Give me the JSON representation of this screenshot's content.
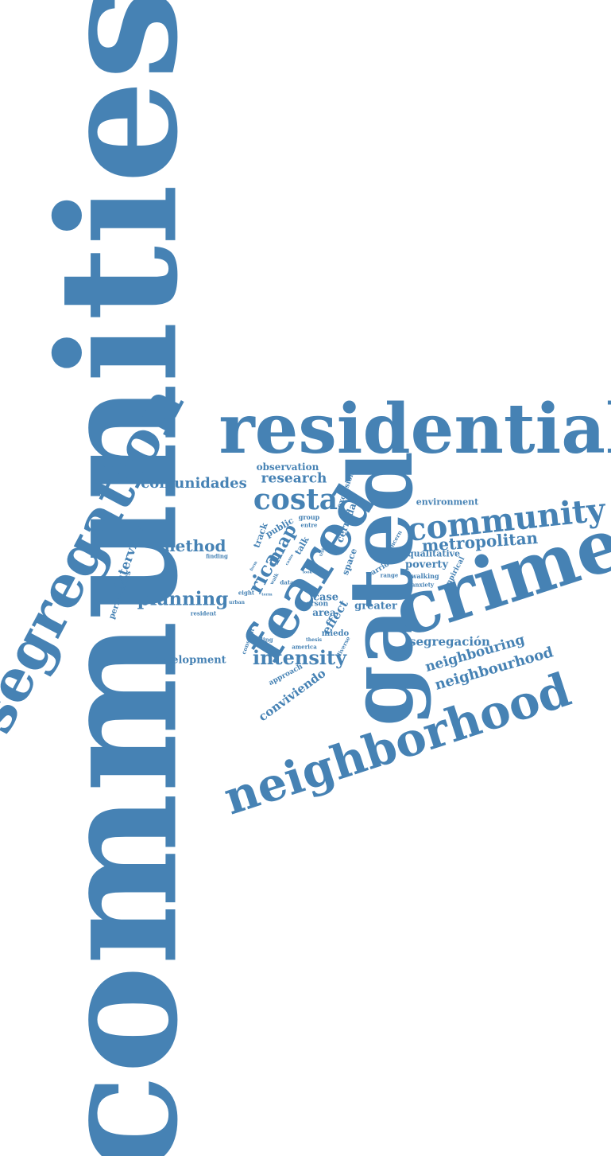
{
  "color": "#4682b4",
  "words": [
    {
      "text": "communities"
    },
    {
      "text": "residential"
    },
    {
      "text": "segregation"
    },
    {
      "text": "gated"
    },
    {
      "text": "crime"
    },
    {
      "text": "feared"
    },
    {
      "text": "neighborhood"
    },
    {
      "text": "community"
    },
    {
      "text": "costa"
    },
    {
      "text": "metropolitan"
    },
    {
      "text": "intensity"
    },
    {
      "text": "planning"
    },
    {
      "text": "method"
    },
    {
      "text": "comunidades"
    },
    {
      "text": "research"
    },
    {
      "text": "observation"
    },
    {
      "text": "neighbourhood"
    },
    {
      "text": "neighbouring"
    },
    {
      "text": "segregación"
    },
    {
      "text": "development"
    },
    {
      "text": "conviviendo"
    },
    {
      "text": "interview"
    },
    {
      "text": "rica"
    },
    {
      "text": "map"
    },
    {
      "text": "environment"
    },
    {
      "text": "qualitative"
    },
    {
      "text": "poverty"
    },
    {
      "text": "greater"
    },
    {
      "text": "case"
    },
    {
      "text": "area"
    },
    {
      "text": "effect"
    },
    {
      "text": "cerradas"
    },
    {
      "text": "public"
    },
    {
      "text": "track"
    },
    {
      "text": "space"
    },
    {
      "text": "exclusion"
    },
    {
      "text": "talk"
    },
    {
      "text": "group"
    },
    {
      "text": "entre"
    },
    {
      "text": "studies"
    },
    {
      "text": "peripheries"
    },
    {
      "text": "finding"
    },
    {
      "text": "eight"
    },
    {
      "text": "urban"
    },
    {
      "text": "resident"
    },
    {
      "text": "data"
    },
    {
      "text": "person"
    },
    {
      "text": "barrio"
    },
    {
      "text": "concern"
    },
    {
      "text": "empirical"
    },
    {
      "text": "walking"
    },
    {
      "text": "range"
    },
    {
      "text": "anxiety"
    },
    {
      "text": "miedo"
    },
    {
      "text": "feeling"
    },
    {
      "text": "america"
    },
    {
      "text": "thesis"
    },
    {
      "text": "constant"
    },
    {
      "text": "approach"
    },
    {
      "text": "diverse"
    },
    {
      "text": "walk"
    },
    {
      "text": "look"
    },
    {
      "text": "casos"
    },
    {
      "text": "form"
    },
    {
      "text": "term"
    },
    {
      "text": "trabajo"
    }
  ]
}
